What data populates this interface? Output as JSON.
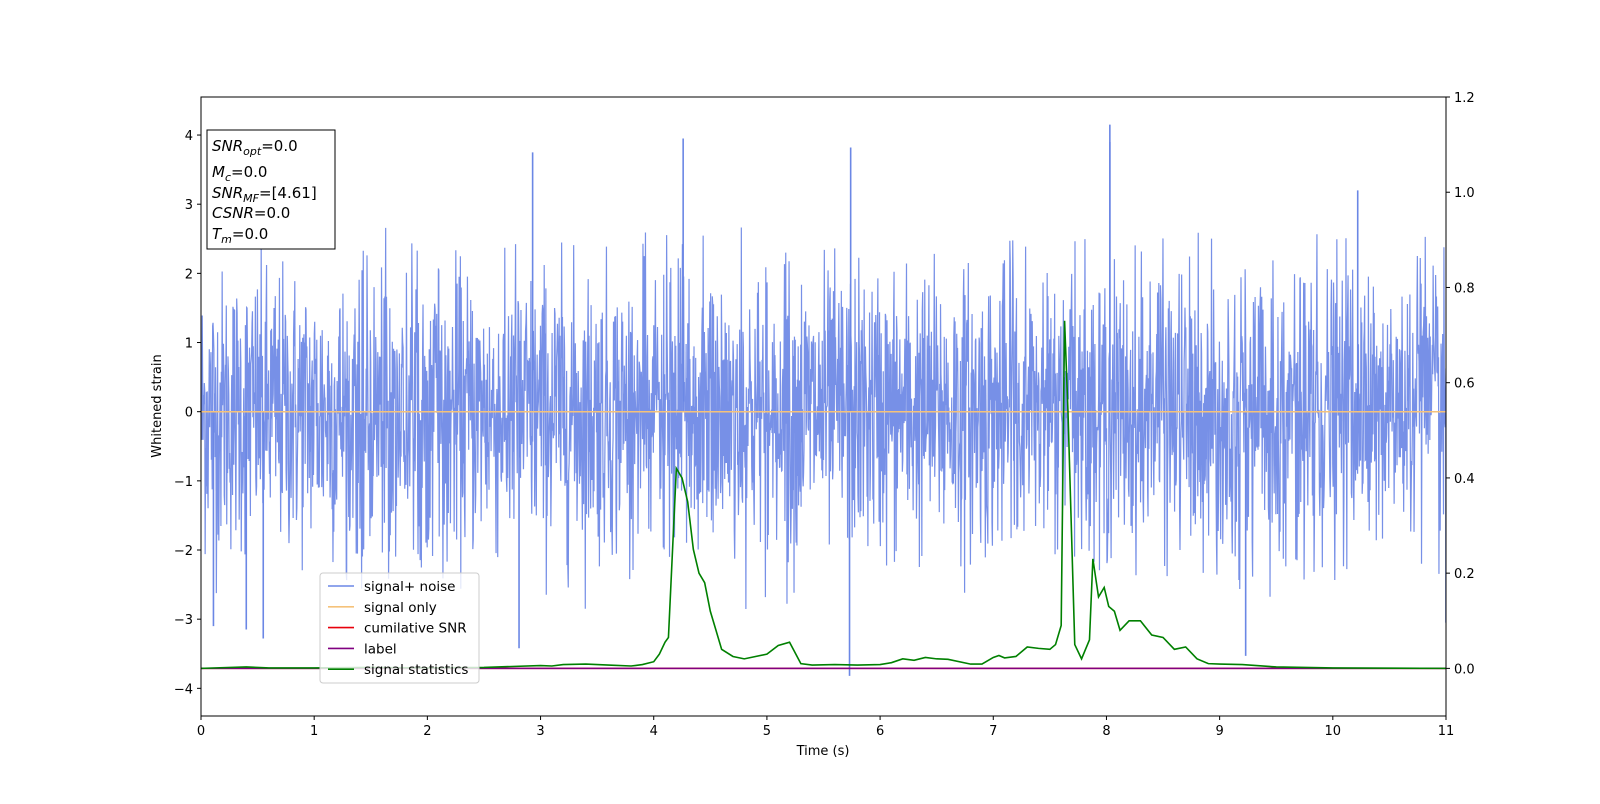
{
  "chart_data": {
    "type": "line",
    "xlabel": "Time (s)",
    "ylabel": "Whitened strain",
    "xlim": [
      0,
      11
    ],
    "ylim_left": [
      -4.4,
      4.55
    ],
    "ylim_right": [
      -0.1,
      1.2
    ],
    "x_ticks": [
      0,
      1,
      2,
      3,
      4,
      5,
      6,
      7,
      8,
      9,
      10,
      11
    ],
    "y_ticks_left": [
      -4,
      -3,
      -2,
      -1,
      0,
      1,
      2,
      3,
      4
    ],
    "y_ticks_right": [
      0.0,
      0.2,
      0.4,
      0.6,
      0.8,
      1.0,
      1.2
    ],
    "y_tick_labels_right": [
      "0.0",
      "0.2",
      "0.4",
      "0.6",
      "0.8",
      "1.0",
      "1.2"
    ],
    "grid": false,
    "legend_position": "lower-left",
    "series": [
      {
        "name": "signal+ noise",
        "color": "#6b87e5",
        "axis": "left",
        "kind": "noise",
        "band": [
          -2.0,
          2.3
        ],
        "extreme_peaks": [
          {
            "x": 2.93,
            "y": 3.75
          },
          {
            "x": 4.26,
            "y": 3.95
          },
          {
            "x": 5.74,
            "y": 3.82
          },
          {
            "x": 8.03,
            "y": 4.15
          },
          {
            "x": 8.03,
            "y": 3.9
          },
          {
            "x": 10.22,
            "y": 3.2
          },
          {
            "x": 2.81,
            "y": -3.42
          },
          {
            "x": 5.73,
            "y": -3.82
          },
          {
            "x": 9.23,
            "y": -3.53
          },
          {
            "x": 0.11,
            "y": -3.1
          },
          {
            "x": 0.4,
            "y": -3.15
          },
          {
            "x": 0.55,
            "y": -3.28
          },
          {
            "x": 11.0,
            "y": -3.05
          }
        ]
      },
      {
        "name": "signal only",
        "color": "#f5c27a",
        "axis": "left",
        "x": [
          0,
          11
        ],
        "y": [
          0,
          0
        ]
      },
      {
        "name": "cumilative SNR",
        "color": "#e8000b",
        "axis": "right",
        "x": [
          0,
          11
        ],
        "y": [
          0,
          0
        ]
      },
      {
        "name": "label",
        "color": "#800080",
        "axis": "right",
        "x": [
          0,
          11
        ],
        "y": [
          0,
          0
        ]
      },
      {
        "name": "signal statistics",
        "color": "#008000",
        "axis": "right",
        "x": [
          0,
          0.4,
          0.6,
          1.0,
          1.5,
          2.0,
          2.5,
          3.0,
          3.1,
          3.2,
          3.4,
          3.6,
          3.8,
          3.9,
          4.0,
          4.05,
          4.1,
          4.13,
          4.2,
          4.25,
          4.3,
          4.35,
          4.4,
          4.45,
          4.5,
          4.55,
          4.6,
          4.7,
          4.8,
          5.0,
          5.1,
          5.2,
          5.3,
          5.4,
          5.6,
          5.8,
          6.0,
          6.1,
          6.2,
          6.3,
          6.4,
          6.5,
          6.6,
          6.8,
          6.9,
          7.0,
          7.05,
          7.1,
          7.2,
          7.3,
          7.4,
          7.5,
          7.55,
          7.6,
          7.63,
          7.66,
          7.72,
          7.78,
          7.85,
          7.88,
          7.93,
          7.98,
          8.02,
          8.07,
          8.12,
          8.2,
          8.3,
          8.4,
          8.5,
          8.6,
          8.7,
          8.8,
          8.9,
          9.0,
          9.2,
          9.5,
          10.0,
          11.0
        ],
        "y": [
          0.0,
          0.003,
          0.001,
          0.001,
          0.002,
          0.001,
          0.002,
          0.006,
          0.005,
          0.008,
          0.009,
          0.007,
          0.005,
          0.008,
          0.014,
          0.03,
          0.055,
          0.065,
          0.42,
          0.4,
          0.35,
          0.25,
          0.2,
          0.18,
          0.12,
          0.08,
          0.04,
          0.025,
          0.02,
          0.03,
          0.048,
          0.055,
          0.01,
          0.007,
          0.008,
          0.007,
          0.008,
          0.012,
          0.02,
          0.017,
          0.023,
          0.02,
          0.019,
          0.009,
          0.009,
          0.023,
          0.027,
          0.022,
          0.025,
          0.045,
          0.042,
          0.04,
          0.05,
          0.09,
          0.73,
          0.54,
          0.05,
          0.02,
          0.06,
          0.23,
          0.15,
          0.17,
          0.13,
          0.12,
          0.08,
          0.1,
          0.1,
          0.07,
          0.065,
          0.04,
          0.045,
          0.02,
          0.01,
          0.009,
          0.008,
          0.003,
          0.001,
          0.0
        ]
      }
    ],
    "annotation_box": [
      {
        "main": "SNR",
        "sub": "opt",
        "suffix": "=0.0"
      },
      {
        "main": "M",
        "sub": "c",
        "suffix": "=0.0"
      },
      {
        "main": "SNR",
        "sub": "MF",
        "suffix": "=[4.61]"
      },
      {
        "main": "CSNR",
        "sub": "",
        "suffix": "=0.0"
      },
      {
        "main": "T",
        "sub": "m",
        "suffix": "=0.0"
      }
    ]
  }
}
